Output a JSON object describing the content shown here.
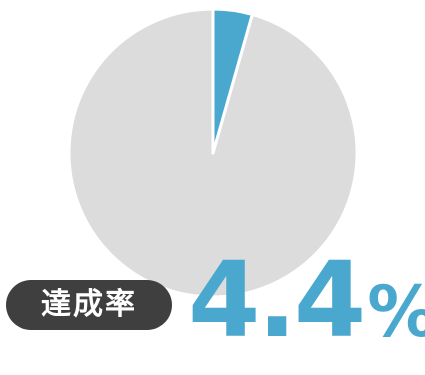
{
  "chart_data": {
    "type": "pie",
    "title": "",
    "slices": [
      {
        "label": "",
        "value": 4.4,
        "color": "#4aa8cf"
      },
      {
        "label": "",
        "value": 95.6,
        "color": "#dcdcdc"
      }
    ]
  },
  "label": "達成率",
  "value_number": "4.4",
  "value_unit": "%"
}
